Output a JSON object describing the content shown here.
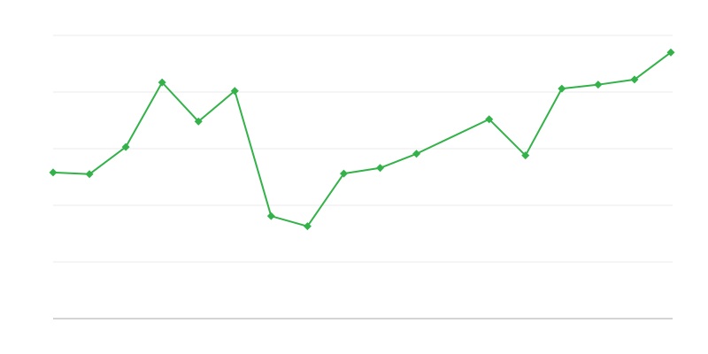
{
  "chart_data": {
    "type": "line",
    "title": "",
    "xlabel": "",
    "ylabel": "",
    "x": [
      0,
      1,
      2,
      3,
      4,
      5,
      6,
      7,
      8,
      9,
      10,
      12,
      13,
      14,
      15,
      16,
      17
    ],
    "xlim": [
      0,
      17
    ],
    "ylim": [
      0,
      5
    ],
    "y_gridlines": [
      1,
      2,
      3,
      4,
      5
    ],
    "grid": true,
    "series": [
      {
        "values": [
          2.58,
          2.55,
          3.03,
          4.17,
          3.48,
          4.02,
          1.81,
          1.63,
          2.56,
          2.66,
          2.91,
          3.52,
          2.88,
          4.06,
          4.13,
          4.22,
          4.7
        ],
        "color": "#33b249",
        "marker": "diamond"
      }
    ],
    "colors": {
      "grid": "#ebebeb",
      "axis": "#aaaaaa"
    }
  }
}
